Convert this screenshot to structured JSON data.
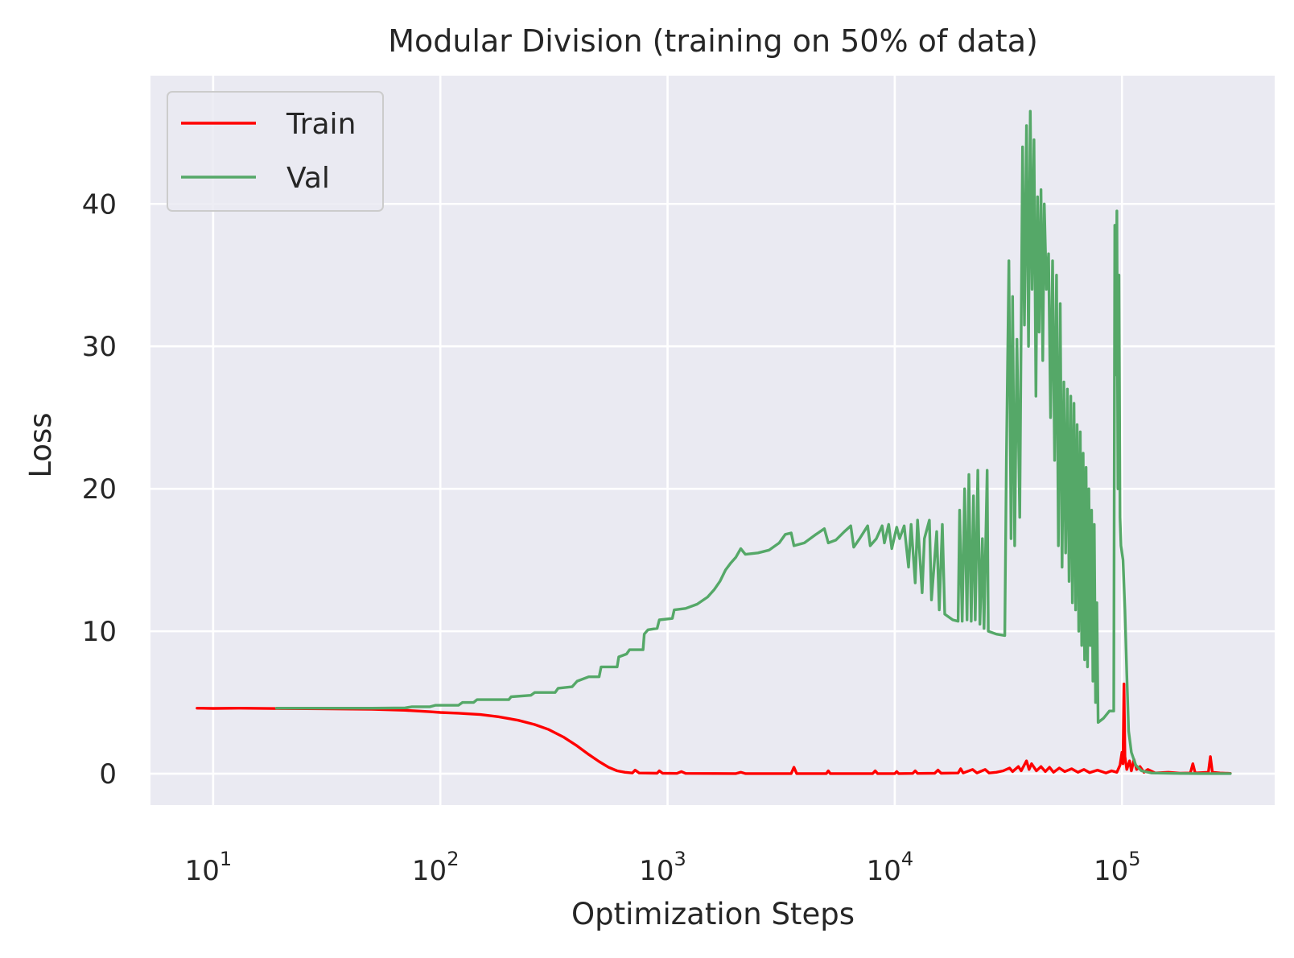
{
  "chart_data": {
    "type": "line",
    "title": "Modular Division (training on 50% of data)",
    "xlabel": "Optimization Steps",
    "ylabel": "Loss",
    "x_scale": "log",
    "xlim": [
      5.3,
      470000
    ],
    "ylim": [
      -2.2,
      49
    ],
    "x_ticks": [
      {
        "value": 10,
        "base": "10",
        "exp": "1"
      },
      {
        "value": 100,
        "base": "10",
        "exp": "2"
      },
      {
        "value": 1000,
        "base": "10",
        "exp": "3"
      },
      {
        "value": 10000,
        "base": "10",
        "exp": "4"
      },
      {
        "value": 100000,
        "base": "10",
        "exp": "5"
      }
    ],
    "y_ticks": [
      {
        "value": 0,
        "label": "0"
      },
      {
        "value": 10,
        "label": "10"
      },
      {
        "value": 20,
        "label": "20"
      },
      {
        "value": 30,
        "label": "30"
      },
      {
        "value": 40,
        "label": "40"
      }
    ],
    "grid": true,
    "legend_position": "top-left",
    "series": [
      {
        "name": "Train",
        "color": "#ff0000",
        "points": [
          [
            8.5,
            4.6
          ],
          [
            10,
            4.58
          ],
          [
            13,
            4.6
          ],
          [
            20,
            4.57
          ],
          [
            30,
            4.56
          ],
          [
            50,
            4.52
          ],
          [
            70,
            4.45
          ],
          [
            90,
            4.35
          ],
          [
            100,
            4.3
          ],
          [
            120,
            4.25
          ],
          [
            150,
            4.15
          ],
          [
            180,
            4.0
          ],
          [
            220,
            3.75
          ],
          [
            260,
            3.45
          ],
          [
            300,
            3.1
          ],
          [
            350,
            2.55
          ],
          [
            400,
            1.95
          ],
          [
            450,
            1.35
          ],
          [
            500,
            0.85
          ],
          [
            550,
            0.45
          ],
          [
            600,
            0.2
          ],
          [
            650,
            0.1
          ],
          [
            700,
            0.05
          ],
          [
            720,
            0.25
          ],
          [
            750,
            0.05
          ],
          [
            900,
            0.03
          ],
          [
            920,
            0.2
          ],
          [
            950,
            0.03
          ],
          [
            1100,
            0.02
          ],
          [
            1150,
            0.15
          ],
          [
            1200,
            0.02
          ],
          [
            2000,
            0.01
          ],
          [
            2100,
            0.1
          ],
          [
            2200,
            0.01
          ],
          [
            3500,
            0.01
          ],
          [
            3600,
            0.45
          ],
          [
            3700,
            0.01
          ],
          [
            5000,
            0.01
          ],
          [
            5100,
            0.2
          ],
          [
            5200,
            0.01
          ],
          [
            8000,
            0.01
          ],
          [
            8200,
            0.2
          ],
          [
            8400,
            0.01
          ],
          [
            10000,
            0.01
          ],
          [
            10200,
            0.15
          ],
          [
            10400,
            0.01
          ],
          [
            12000,
            0.02
          ],
          [
            12300,
            0.2
          ],
          [
            12600,
            0.02
          ],
          [
            15000,
            0.03
          ],
          [
            15500,
            0.25
          ],
          [
            16000,
            0.03
          ],
          [
            19000,
            0.05
          ],
          [
            19500,
            0.35
          ],
          [
            20000,
            0.05
          ],
          [
            22000,
            0.3
          ],
          [
            23000,
            0.05
          ],
          [
            25000,
            0.3
          ],
          [
            26000,
            0.05
          ],
          [
            28000,
            0.1
          ],
          [
            30000,
            0.2
          ],
          [
            32000,
            0.4
          ],
          [
            33000,
            0.15
          ],
          [
            35000,
            0.5
          ],
          [
            36000,
            0.2
          ],
          [
            38000,
            0.9
          ],
          [
            39000,
            0.3
          ],
          [
            40000,
            0.7
          ],
          [
            42000,
            0.2
          ],
          [
            44000,
            0.5
          ],
          [
            46000,
            0.15
          ],
          [
            48000,
            0.45
          ],
          [
            50000,
            0.1
          ],
          [
            53000,
            0.4
          ],
          [
            56000,
            0.15
          ],
          [
            60000,
            0.35
          ],
          [
            64000,
            0.1
          ],
          [
            68000,
            0.3
          ],
          [
            72000,
            0.08
          ],
          [
            78000,
            0.25
          ],
          [
            85000,
            0.05
          ],
          [
            90000,
            0.2
          ],
          [
            95000,
            0.1
          ],
          [
            98000,
            0.6
          ],
          [
            100000,
            1.5
          ],
          [
            101000,
            0.7
          ],
          [
            102000,
            6.3
          ],
          [
            103000,
            1.2
          ],
          [
            105000,
            0.3
          ],
          [
            108000,
            0.9
          ],
          [
            110000,
            0.2
          ],
          [
            113000,
            1.0
          ],
          [
            116000,
            0.3
          ],
          [
            120000,
            0.5
          ],
          [
            125000,
            0.1
          ],
          [
            130000,
            0.3
          ],
          [
            140000,
            0.05
          ],
          [
            160000,
            0.1
          ],
          [
            180000,
            0.03
          ],
          [
            200000,
            0.05
          ],
          [
            205000,
            0.7
          ],
          [
            210000,
            0.05
          ],
          [
            240000,
            0.1
          ],
          [
            245000,
            1.2
          ],
          [
            250000,
            0.1
          ],
          [
            270000,
            0.05
          ],
          [
            300000,
            0.02
          ]
        ]
      },
      {
        "name": "Val",
        "color": "#55a868",
        "points": [
          [
            19,
            4.6
          ],
          [
            30,
            4.6
          ],
          [
            50,
            4.6
          ],
          [
            70,
            4.62
          ],
          [
            75,
            4.7
          ],
          [
            90,
            4.7
          ],
          [
            95,
            4.8
          ],
          [
            120,
            4.8
          ],
          [
            125,
            5.0
          ],
          [
            140,
            5.0
          ],
          [
            145,
            5.2
          ],
          [
            200,
            5.2
          ],
          [
            205,
            5.4
          ],
          [
            250,
            5.5
          ],
          [
            260,
            5.7
          ],
          [
            320,
            5.7
          ],
          [
            330,
            6.0
          ],
          [
            380,
            6.1
          ],
          [
            400,
            6.5
          ],
          [
            450,
            6.8
          ],
          [
            500,
            6.8
          ],
          [
            510,
            7.5
          ],
          [
            600,
            7.5
          ],
          [
            610,
            8.2
          ],
          [
            660,
            8.4
          ],
          [
            680,
            8.7
          ],
          [
            780,
            8.7
          ],
          [
            790,
            9.8
          ],
          [
            820,
            10.1
          ],
          [
            900,
            10.2
          ],
          [
            920,
            10.8
          ],
          [
            1050,
            10.9
          ],
          [
            1070,
            11.5
          ],
          [
            1200,
            11.6
          ],
          [
            1350,
            11.9
          ],
          [
            1500,
            12.4
          ],
          [
            1600,
            12.9
          ],
          [
            1700,
            13.5
          ],
          [
            1800,
            14.3
          ],
          [
            1900,
            14.8
          ],
          [
            2000,
            15.2
          ],
          [
            2100,
            15.8
          ],
          [
            2200,
            15.4
          ],
          [
            2500,
            15.5
          ],
          [
            2800,
            15.7
          ],
          [
            3100,
            16.2
          ],
          [
            3300,
            16.8
          ],
          [
            3500,
            16.9
          ],
          [
            3600,
            16.0
          ],
          [
            4000,
            16.2
          ],
          [
            4500,
            16.8
          ],
          [
            4900,
            17.2
          ],
          [
            5100,
            16.2
          ],
          [
            5500,
            16.4
          ],
          [
            6000,
            17.0
          ],
          [
            6400,
            17.4
          ],
          [
            6600,
            15.9
          ],
          [
            7000,
            16.5
          ],
          [
            7600,
            17.4
          ],
          [
            7800,
            16.0
          ],
          [
            8300,
            16.5
          ],
          [
            8800,
            17.4
          ],
          [
            9000,
            16.2
          ],
          [
            9400,
            17.5
          ],
          [
            9700,
            15.8
          ],
          [
            10200,
            17.3
          ],
          [
            10500,
            16.5
          ],
          [
            11000,
            17.4
          ],
          [
            11500,
            14.5
          ],
          [
            11800,
            17.5
          ],
          [
            12300,
            13.4
          ],
          [
            12600,
            17.8
          ],
          [
            13200,
            12.7
          ],
          [
            13500,
            16.5
          ],
          [
            14200,
            17.8
          ],
          [
            14500,
            12.2
          ],
          [
            15300,
            17.0
          ],
          [
            15700,
            11.5
          ],
          [
            16200,
            17.5
          ],
          [
            16600,
            11.2
          ],
          [
            18000,
            10.8
          ],
          [
            19000,
            10.7
          ],
          [
            19300,
            18.5
          ],
          [
            19800,
            10.7
          ],
          [
            20300,
            20.0
          ],
          [
            20800,
            10.8
          ],
          [
            21200,
            21.0
          ],
          [
            21700,
            10.7
          ],
          [
            22200,
            19.5
          ],
          [
            22600,
            10.8
          ],
          [
            23200,
            21.3
          ],
          [
            23700,
            10.5
          ],
          [
            24300,
            16.5
          ],
          [
            24700,
            10.2
          ],
          [
            25500,
            21.3
          ],
          [
            25800,
            10.0
          ],
          [
            28000,
            9.8
          ],
          [
            30500,
            9.7
          ],
          [
            31000,
            22.0
          ],
          [
            31800,
            36.0
          ],
          [
            32500,
            16.5
          ],
          [
            33000,
            33.5
          ],
          [
            33700,
            16.0
          ],
          [
            34500,
            30.5
          ],
          [
            35500,
            18.0
          ],
          [
            36500,
            44.0
          ],
          [
            37200,
            31.5
          ],
          [
            38000,
            45.5
          ],
          [
            38800,
            30.0
          ],
          [
            39500,
            46.5
          ],
          [
            40200,
            34.0
          ],
          [
            41000,
            44.5
          ],
          [
            41800,
            26.5
          ],
          [
            42500,
            40.5
          ],
          [
            43200,
            31.0
          ],
          [
            44000,
            41.0
          ],
          [
            44800,
            29.0
          ],
          [
            45500,
            40.0
          ],
          [
            46500,
            34.0
          ],
          [
            47500,
            36.5
          ],
          [
            48500,
            25.0
          ],
          [
            49500,
            36.0
          ],
          [
            50500,
            22.0
          ],
          [
            51500,
            35.0
          ],
          [
            52500,
            16.0
          ],
          [
            53500,
            33.0
          ],
          [
            54500,
            14.5
          ],
          [
            55500,
            27.5
          ],
          [
            56500,
            15.5
          ],
          [
            57500,
            27.0
          ],
          [
            58500,
            13.5
          ],
          [
            59500,
            26.5
          ],
          [
            60500,
            12.0
          ],
          [
            61500,
            26.0
          ],
          [
            62500,
            11.5
          ],
          [
            63500,
            24.5
          ],
          [
            64500,
            10.0
          ],
          [
            65500,
            24.0
          ],
          [
            66500,
            9.0
          ],
          [
            67500,
            22.5
          ],
          [
            68500,
            8.0
          ],
          [
            69500,
            21.5
          ],
          [
            70500,
            7.5
          ],
          [
            71500,
            20.0
          ],
          [
            72500,
            9.0
          ],
          [
            73500,
            18.5
          ],
          [
            74500,
            6.5
          ],
          [
            75500,
            17.5
          ],
          [
            76500,
            5.0
          ],
          [
            77500,
            12.0
          ],
          [
            78500,
            3.6
          ],
          [
            83000,
            3.9
          ],
          [
            88000,
            4.4
          ],
          [
            92000,
            4.4
          ],
          [
            93000,
            38.5
          ],
          [
            94000,
            28.0
          ],
          [
            95000,
            39.5
          ],
          [
            96000,
            20.0
          ],
          [
            97000,
            35.0
          ],
          [
            98000,
            18.0
          ],
          [
            99000,
            16.0
          ],
          [
            101000,
            15.0
          ],
          [
            103000,
            11.5
          ],
          [
            105000,
            7.0
          ],
          [
            107000,
            3.0
          ],
          [
            110000,
            1.5
          ],
          [
            115000,
            0.6
          ],
          [
            122000,
            0.2
          ],
          [
            135000,
            0.05
          ],
          [
            170000,
            0.02
          ],
          [
            220000,
            0.01
          ],
          [
            300000,
            0.01
          ]
        ]
      }
    ]
  }
}
